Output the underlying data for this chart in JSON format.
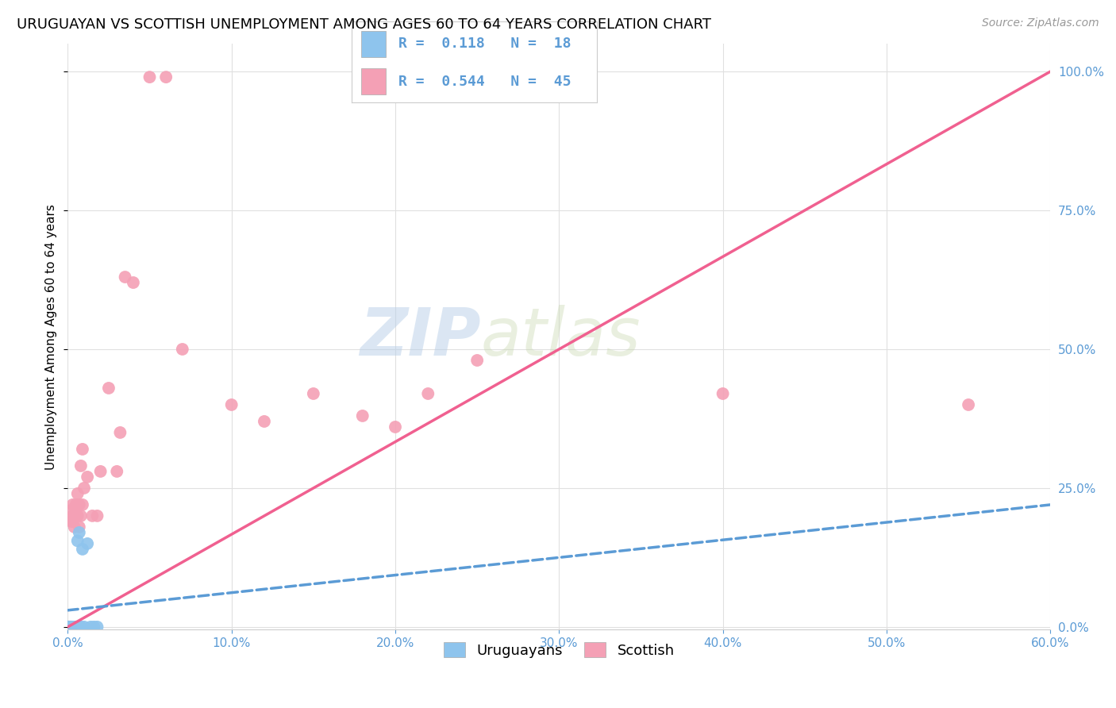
{
  "title": "URUGUAYAN VS SCOTTISH UNEMPLOYMENT AMONG AGES 60 TO 64 YEARS CORRELATION CHART",
  "source": "Source: ZipAtlas.com",
  "ylabel": "Unemployment Among Ages 60 to 64 years",
  "xlim": [
    0.0,
    0.6
  ],
  "ylim": [
    -0.005,
    1.05
  ],
  "uruguayan_color": "#8ec4ed",
  "scottish_color": "#f4a0b5",
  "uruguayan_trend_color": "#5b9bd5",
  "scottish_trend_color": "#f06090",
  "uruguayan_R": 0.118,
  "uruguayan_N": 18,
  "scottish_R": 0.544,
  "scottish_N": 45,
  "uruguayan_x": [
    0.0,
    0.0,
    0.002,
    0.002,
    0.003,
    0.004,
    0.005,
    0.005,
    0.006,
    0.007,
    0.007,
    0.008,
    0.009,
    0.01,
    0.012,
    0.014,
    0.016,
    0.018
  ],
  "uruguayan_y": [
    0.0,
    0.0,
    0.0,
    0.0,
    0.0,
    0.0,
    0.0,
    0.0,
    0.155,
    0.17,
    0.0,
    0.0,
    0.14,
    0.0,
    0.15,
    0.0,
    0.0,
    0.0
  ],
  "scottish_x": [
    0.0,
    0.0,
    0.0,
    0.001,
    0.001,
    0.002,
    0.002,
    0.002,
    0.003,
    0.003,
    0.003,
    0.004,
    0.004,
    0.005,
    0.005,
    0.006,
    0.006,
    0.007,
    0.007,
    0.008,
    0.008,
    0.009,
    0.009,
    0.01,
    0.012,
    0.015,
    0.018,
    0.02,
    0.025,
    0.03,
    0.032,
    0.035,
    0.04,
    0.05,
    0.06,
    0.07,
    0.1,
    0.12,
    0.15,
    0.18,
    0.2,
    0.22,
    0.25,
    0.4,
    0.55
  ],
  "scottish_y": [
    0.0,
    0.0,
    0.0,
    0.0,
    0.0,
    0.19,
    0.21,
    0.0,
    0.19,
    0.2,
    0.22,
    0.18,
    0.2,
    0.21,
    0.22,
    0.24,
    0.2,
    0.22,
    0.18,
    0.2,
    0.29,
    0.32,
    0.22,
    0.25,
    0.27,
    0.2,
    0.2,
    0.28,
    0.43,
    0.28,
    0.35,
    0.63,
    0.62,
    0.99,
    0.99,
    0.5,
    0.4,
    0.37,
    0.42,
    0.38,
    0.36,
    0.42,
    0.48,
    0.42,
    0.4
  ],
  "scottish_trend_x0": 0.0,
  "scottish_trend_y0": 0.0,
  "scottish_trend_x1": 0.6,
  "scottish_trend_y1": 1.0,
  "uruguayan_trend_x0": 0.0,
  "uruguayan_trend_y0": 0.03,
  "uruguayan_trend_x1": 0.6,
  "uruguayan_trend_y1": 0.22,
  "watermark_line1": "ZIP",
  "watermark_line2": "atlas",
  "background_color": "#ffffff",
  "grid_color": "#e0e0e0",
  "title_fontsize": 13,
  "label_fontsize": 11,
  "tick_fontsize": 11,
  "legend_fontsize": 13
}
